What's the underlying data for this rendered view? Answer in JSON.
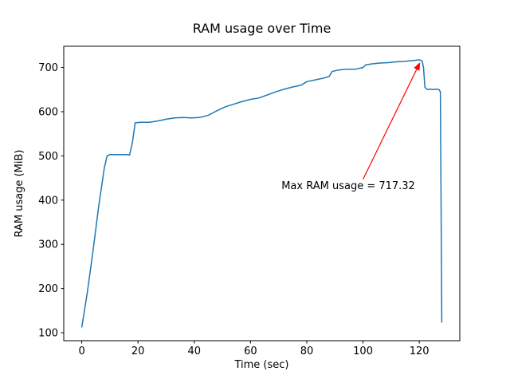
{
  "window": {
    "title": "RAM usage over Time"
  },
  "chart_data": {
    "type": "line",
    "title": "RAM usage over Time",
    "xlabel": "Time (sec)",
    "ylabel": "RAM usage (MiB)",
    "xlim": [
      -6.4,
      134.4
    ],
    "ylim": [
      82,
      748
    ],
    "xticks": [
      0,
      20,
      40,
      60,
      80,
      100,
      120
    ],
    "yticks": [
      100,
      200,
      300,
      400,
      500,
      600,
      700
    ],
    "grid": false,
    "legend": "none",
    "line_color": "#1f77b4",
    "spine_color": "#000000",
    "background": "#ffffff",
    "max_value": 717.32,
    "series": [
      {
        "name": "RAM usage (MiB)",
        "points": [
          [
            0,
            112
          ],
          [
            2,
            192
          ],
          [
            4,
            285
          ],
          [
            6,
            385
          ],
          [
            8,
            472
          ],
          [
            9,
            500
          ],
          [
            10,
            503
          ],
          [
            16,
            503
          ],
          [
            17,
            502
          ],
          [
            18,
            530
          ],
          [
            19,
            575
          ],
          [
            21,
            576
          ],
          [
            24,
            576
          ],
          [
            27,
            579
          ],
          [
            30,
            583
          ],
          [
            33,
            586
          ],
          [
            36,
            587
          ],
          [
            39,
            586
          ],
          [
            42,
            587
          ],
          [
            45,
            592
          ],
          [
            48,
            602
          ],
          [
            51,
            611
          ],
          [
            54,
            617
          ],
          [
            57,
            623
          ],
          [
            60,
            628
          ],
          [
            63,
            631
          ],
          [
            66,
            638
          ],
          [
            69,
            645
          ],
          [
            72,
            651
          ],
          [
            75,
            656
          ],
          [
            78,
            660
          ],
          [
            80,
            668
          ],
          [
            83,
            672
          ],
          [
            86,
            676
          ],
          [
            88,
            680
          ],
          [
            89,
            691
          ],
          [
            91,
            694
          ],
          [
            94,
            696
          ],
          [
            97,
            696
          ],
          [
            100,
            700
          ],
          [
            101,
            706
          ],
          [
            103,
            708
          ],
          [
            106,
            710
          ],
          [
            109,
            711
          ],
          [
            112,
            713
          ],
          [
            115,
            714
          ],
          [
            118,
            716
          ],
          [
            120,
            717.32
          ],
          [
            121,
            715
          ],
          [
            121.5,
            700
          ],
          [
            122,
            655
          ],
          [
            123,
            650
          ],
          [
            124,
            651
          ],
          [
            125,
            650
          ],
          [
            126,
            651
          ],
          [
            127,
            650
          ],
          [
            127.5,
            645
          ],
          [
            128,
            123
          ]
        ]
      }
    ],
    "annotation": {
      "text": "Max RAM usage = 717.32",
      "color": "#ff0000",
      "text_pos": [
        71,
        425
      ],
      "arrow_from": [
        100,
        447
      ],
      "arrow_to": [
        120.3,
        712
      ]
    }
  }
}
